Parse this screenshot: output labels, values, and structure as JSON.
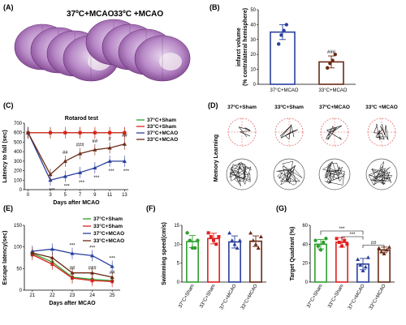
{
  "colors": {
    "sham37": "#2ca02c",
    "sham33": "#e02020",
    "mcao37": "#2a3f9d",
    "mcao33": "#6b2a14"
  },
  "panelA": {
    "label": "(A)",
    "title_left": "37ºC+MCAO",
    "title_right": "33ºC +MCAO"
  },
  "chart_data": [
    {
      "id": "B",
      "type": "bar",
      "label": "(B)",
      "ylabel": "infarct volume\n(% contralateral hemisphere)",
      "ylim": [
        0,
        50
      ],
      "yticks": [
        0,
        10,
        20,
        30,
        40,
        50
      ],
      "categories": [
        "37°C+MCAO",
        "33°C+MCAO"
      ],
      "values": [
        35,
        15
      ],
      "errors": [
        5,
        4
      ],
      "points": [
        [
          27,
          33,
          36,
          40
        ],
        [
          11,
          14,
          16,
          20
        ]
      ],
      "annotations": [
        "",
        "###"
      ]
    },
    {
      "id": "C",
      "type": "line",
      "label": "(C)",
      "title": "Rotarod test",
      "xlabel": "Days after MCAO",
      "ylabel": "Latency to fall (sec)",
      "xticks": [
        0,
        3,
        5,
        7,
        9,
        11,
        13
      ],
      "ylim": [
        0,
        700
      ],
      "yticks": [
        0,
        100,
        200,
        300,
        400,
        500,
        600,
        700
      ],
      "series": [
        {
          "name": "37°C+Sham",
          "x": [
            0,
            3,
            5,
            7,
            9,
            11,
            13
          ],
          "y": [
            600,
            600,
            600,
            600,
            600,
            600,
            600
          ]
        },
        {
          "name": "33°C+Sham",
          "x": [
            0,
            3,
            5,
            7,
            9,
            11,
            13
          ],
          "y": [
            600,
            600,
            600,
            600,
            600,
            600,
            600
          ]
        },
        {
          "name": "37°C+MCAO",
          "x": [
            0,
            3,
            5,
            7,
            9,
            11,
            13
          ],
          "y": [
            600,
            100,
            140,
            180,
            230,
            300,
            300
          ]
        },
        {
          "name": "33°C+MCAO",
          "x": [
            0,
            3,
            5,
            7,
            9,
            11,
            13
          ],
          "y": [
            600,
            160,
            300,
            380,
            420,
            440,
            480
          ]
        }
      ],
      "annotations": [
        {
          "x": 5,
          "text": "##"
        },
        {
          "x": 7,
          "text": "###"
        },
        {
          "x": 9,
          "text": "##"
        },
        {
          "x": 11,
          "text": "#"
        },
        {
          "x": 13,
          "text": "##"
        },
        {
          "x": 3,
          "text": "***"
        },
        {
          "x": 5,
          "text": "***"
        },
        {
          "x": 7,
          "text": "***"
        },
        {
          "x": 9,
          "text": "***"
        },
        {
          "x": 11,
          "text": "***"
        },
        {
          "x": 13,
          "text": "***"
        }
      ]
    },
    {
      "id": "E",
      "type": "line",
      "label": "(E)",
      "xlabel": "Days after MCAO",
      "ylabel": "Escape latency(sec)",
      "xticks": [
        21,
        22,
        23,
        24,
        25
      ],
      "ylim": [
        0,
        150
      ],
      "yticks": [
        0,
        50,
        100,
        150
      ],
      "series": [
        {
          "name": "37°C+Sham",
          "x": [
            21,
            22,
            23,
            24,
            25
          ],
          "y": [
            85,
            65,
            30,
            25,
            22
          ]
        },
        {
          "name": "33°C+Sham",
          "x": [
            21,
            22,
            23,
            24,
            25
          ],
          "y": [
            82,
            60,
            28,
            22,
            20
          ]
        },
        {
          "name": "37°C+MCAO",
          "x": [
            21,
            22,
            23,
            24,
            25
          ],
          "y": [
            90,
            95,
            85,
            80,
            55
          ]
        },
        {
          "name": "33°C+MCAO",
          "x": [
            21,
            22,
            23,
            24,
            25
          ],
          "y": [
            86,
            75,
            40,
            40,
            30
          ]
        }
      ],
      "annotations": [
        {
          "x": 23,
          "text": "***"
        },
        {
          "x": 24,
          "text": "***"
        },
        {
          "x": 25,
          "text": "***"
        },
        {
          "x": 23,
          "text": "##"
        },
        {
          "x": 24,
          "text": "###"
        },
        {
          "x": 25,
          "text": "##"
        }
      ]
    },
    {
      "id": "F",
      "type": "bar",
      "label": "(F)",
      "ylabel": "Swimming speed(cm/s)",
      "ylim": [
        0,
        15
      ],
      "yticks": [
        0,
        5,
        10,
        15
      ],
      "categories": [
        "37°C+Sham",
        "33°C+Sham",
        "37°C+MCAO",
        "33°C+MCAO"
      ],
      "values": [
        10.7,
        11.5,
        10.6,
        10.8
      ],
      "errors": [
        1.6,
        1.4,
        1.6,
        1.4
      ],
      "points": [
        [
          13,
          11,
          9,
          9,
          11
        ],
        [
          13,
          12,
          11,
          10,
          12
        ],
        [
          13,
          11,
          10,
          9,
          11
        ],
        [
          13,
          11,
          10,
          9,
          12
        ]
      ]
    },
    {
      "id": "G",
      "type": "bar",
      "label": "(G)",
      "ylabel": "Target Quadrant (%)",
      "ylim": [
        0,
        60
      ],
      "yticks": [
        0,
        20,
        40,
        60
      ],
      "categories": [
        "37°C+Sham",
        "33°C+Sham",
        "37°C+MCAO",
        "33°C+MCAO"
      ],
      "values": [
        40,
        42,
        19,
        34
      ],
      "errors": [
        5,
        5,
        6,
        3
      ],
      "points": [
        [
          44,
          38,
          34,
          42,
          46
        ],
        [
          46,
          42,
          38,
          44,
          40
        ],
        [
          24,
          18,
          12,
          16,
          26
        ],
        [
          36,
          32,
          30,
          34,
          37
        ]
      ],
      "annotations": [
        "***",
        "***",
        "##"
      ]
    }
  ],
  "panelD": {
    "label": "(D)",
    "columns": [
      "37ºC+Sham",
      "33ºC+Sham",
      "37ºC+MCAO",
      "33ºC +MCAO"
    ],
    "row_label": "Memory  Learning"
  }
}
